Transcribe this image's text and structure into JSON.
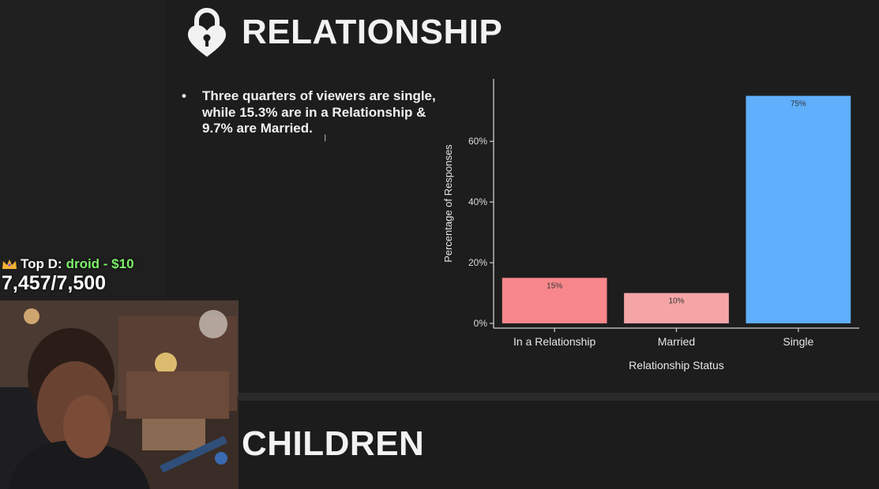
{
  "colors": {
    "pink": "#f8878b",
    "light_pink": "#f6a5a7",
    "blue": "#5faffc",
    "accent_green": "#7cf06a"
  },
  "slide": {
    "heading": "RELATIONSHIP",
    "bullet": "Three quarters of viewers are single, while 15.3% are in a Relationship & 9.7% are Married.",
    "next_heading": "CHILDREN",
    "icon": "heart-padlock-icon"
  },
  "stream_overlay": {
    "top_donor_label": "Top D:",
    "top_donor_name": "droid - $10",
    "follower_goal": "7,457/7,500",
    "icon": "crown-icon"
  },
  "chart_data": {
    "type": "bar",
    "categories": [
      "In a Relationship",
      "Married",
      "Single"
    ],
    "values": [
      15,
      10,
      75
    ],
    "data_labels": [
      "15%",
      "10%",
      "75%"
    ],
    "colors": [
      "#f8878b",
      "#f6a5a7",
      "#5faffc"
    ],
    "xlabel": "Relationship Status",
    "ylabel": "Percentage of Responses",
    "yticks": [
      "0%",
      "20%",
      "40%",
      "60%"
    ],
    "ytick_values": [
      0,
      20,
      40,
      60
    ],
    "ylim": [
      0,
      78
    ],
    "grid": false
  }
}
